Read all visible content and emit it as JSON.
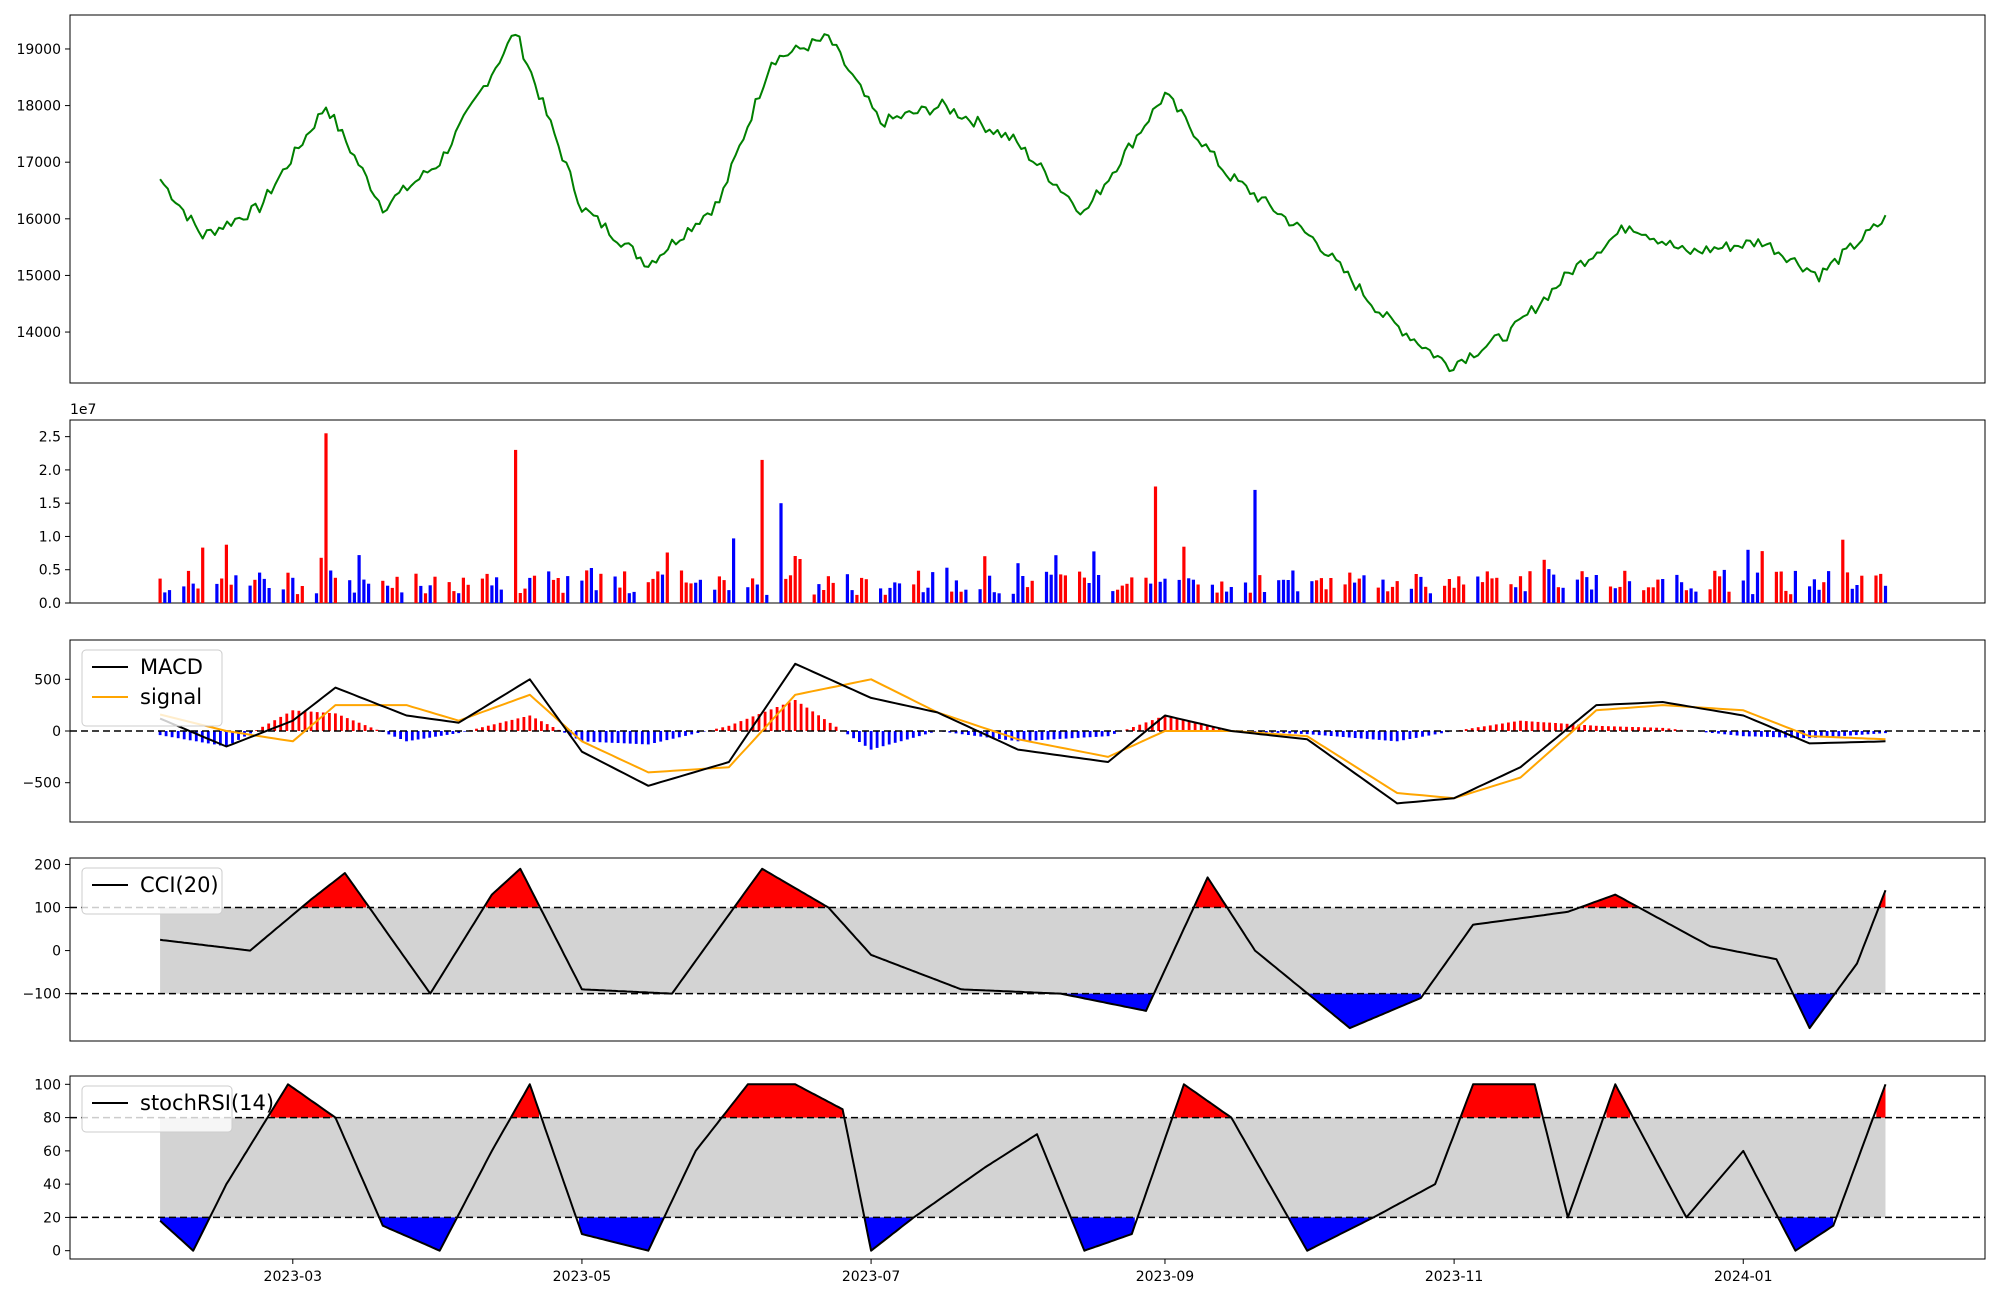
{
  "chart_data": [
    {
      "type": "line",
      "panel": "price",
      "title": "",
      "ylim": [
        13100,
        19600
      ],
      "yticks": [
        14000,
        15000,
        16000,
        17000,
        18000,
        19000
      ],
      "colors": {
        "line": "#008000"
      },
      "x": [
        "2023-02-01",
        "2023-02-10",
        "2023-02-22",
        "2023-03-08",
        "2023-03-20",
        "2023-04-01",
        "2023-04-17",
        "2023-05-01",
        "2023-05-15",
        "2023-05-30",
        "2023-06-10",
        "2023-06-22",
        "2023-07-03",
        "2023-07-16",
        "2023-07-31",
        "2023-08-15",
        "2023-09-01",
        "2023-09-14",
        "2023-10-03",
        "2023-10-17",
        "2023-10-31",
        "2023-11-13",
        "2023-11-26",
        "2023-12-08",
        "2023-12-20",
        "2024-01-05",
        "2024-01-17",
        "2024-01-31"
      ],
      "values": [
        16700,
        15700,
        16200,
        18000,
        16200,
        17000,
        19300,
        16200,
        15200,
        16300,
        18800,
        19200,
        17700,
        18000,
        17400,
        16100,
        18200,
        16800,
        15600,
        14300,
        13400,
        14000,
        15100,
        15900,
        15400,
        15600,
        15000,
        16000
      ]
    },
    {
      "type": "bar",
      "panel": "volume",
      "scale_label": "1e7",
      "ylim": [
        0,
        2.75
      ],
      "yticks": [
        "0.0",
        "0.5",
        "1.0",
        "1.5",
        "2.0",
        "2.5"
      ],
      "colors": {
        "up": "#ff0000",
        "down": "#0000ff"
      },
      "peaks": [
        {
          "x": "2023-03-08",
          "value": 2.55
        },
        {
          "x": "2023-04-17",
          "value": 2.3
        },
        {
          "x": "2023-06-08",
          "value": 2.15
        },
        {
          "x": "2023-06-12",
          "value": 1.5
        },
        {
          "x": "2023-08-30",
          "value": 1.75
        },
        {
          "x": "2023-09-20",
          "value": 1.7
        }
      ],
      "typical_range": [
        1,
        9
      ]
    },
    {
      "type": "line",
      "panel": "macd",
      "ylim": [
        -880,
        880
      ],
      "yticks": [
        -500,
        0,
        500
      ],
      "legend": [
        "MACD",
        "signal"
      ],
      "colors": {
        "macd": "#000000",
        "signal": "#ffa500",
        "hist_pos": "#ff0000",
        "hist_neg": "#0000ff"
      },
      "x": [
        "2023-02-01",
        "2023-02-15",
        "2023-03-01",
        "2023-03-10",
        "2023-03-25",
        "2023-04-05",
        "2023-04-20",
        "2023-05-01",
        "2023-05-15",
        "2023-06-01",
        "2023-06-15",
        "2023-07-01",
        "2023-07-15",
        "2023-08-01",
        "2023-08-20",
        "2023-09-01",
        "2023-09-15",
        "2023-10-01",
        "2023-10-20",
        "2023-11-01",
        "2023-11-15",
        "2023-12-01",
        "2023-12-15",
        "2024-01-01",
        "2024-01-15",
        "2024-01-31"
      ],
      "series": [
        {
          "name": "MACD",
          "values": [
            120,
            -150,
            100,
            420,
            150,
            80,
            500,
            -200,
            -530,
            -300,
            650,
            320,
            180,
            -180,
            -300,
            150,
            0,
            -80,
            -700,
            -650,
            -350,
            250,
            280,
            150,
            -120,
            -100
          ]
        },
        {
          "name": "signal",
          "values": [
            160,
            0,
            -100,
            250,
            250,
            100,
            350,
            -100,
            -400,
            -350,
            350,
            500,
            180,
            -80,
            -250,
            0,
            0,
            -50,
            -600,
            -650,
            -450,
            200,
            250,
            200,
            -50,
            -80
          ]
        }
      ]
    },
    {
      "type": "line",
      "panel": "cci",
      "ylim": [
        -210,
        215
      ],
      "yticks": [
        -100,
        0,
        100,
        200
      ],
      "band": [
        -100,
        100
      ],
      "legend": [
        "CCI(20)"
      ],
      "colors": {
        "line": "#000000",
        "over": "#ff0000",
        "under": "#0000ff",
        "band": "#d3d3d3"
      },
      "x": [
        "2023-02-01",
        "2023-02-20",
        "2023-03-05",
        "2023-03-12",
        "2023-03-30",
        "2023-04-12",
        "2023-04-18",
        "2023-05-01",
        "2023-05-20",
        "2023-06-08",
        "2023-06-22",
        "2023-07-01",
        "2023-07-20",
        "2023-08-10",
        "2023-08-28",
        "2023-09-10",
        "2023-09-20",
        "2023-10-10",
        "2023-10-25",
        "2023-11-05",
        "2023-11-25",
        "2023-12-05",
        "2023-12-25",
        "2024-01-08",
        "2024-01-15",
        "2024-01-25",
        "2024-01-31"
      ],
      "values": [
        25,
        0,
        120,
        180,
        -100,
        130,
        190,
        -90,
        -100,
        190,
        100,
        -10,
        -90,
        -100,
        -140,
        170,
        0,
        -180,
        -110,
        60,
        90,
        130,
        10,
        -20,
        -180,
        -30,
        140
      ]
    },
    {
      "type": "line",
      "panel": "stochrsi",
      "ylim": [
        -5,
        105
      ],
      "yticks": [
        0,
        20,
        40,
        60,
        80,
        100
      ],
      "band": [
        20,
        80
      ],
      "legend": [
        "stochRSI(14)"
      ],
      "colors": {
        "line": "#000000",
        "over": "#ff0000",
        "under": "#0000ff",
        "band": "#d3d3d3"
      },
      "x": [
        "2023-02-01",
        "2023-02-08",
        "2023-02-15",
        "2023-02-28",
        "2023-03-10",
        "2023-03-20",
        "2023-04-01",
        "2023-04-12",
        "2023-04-20",
        "2023-05-01",
        "2023-05-15",
        "2023-05-25",
        "2023-06-05",
        "2023-06-15",
        "2023-06-25",
        "2023-07-01",
        "2023-07-10",
        "2023-07-25",
        "2023-08-05",
        "2023-08-15",
        "2023-08-25",
        "2023-09-05",
        "2023-09-15",
        "2023-10-01",
        "2023-10-15",
        "2023-10-28",
        "2023-11-05",
        "2023-11-18",
        "2023-11-25",
        "2023-12-05",
        "2023-12-20",
        "2024-01-01",
        "2024-01-12",
        "2024-01-20",
        "2024-01-31"
      ],
      "values": [
        18,
        0,
        40,
        100,
        80,
        15,
        0,
        60,
        100,
        10,
        0,
        60,
        100,
        100,
        85,
        0,
        20,
        50,
        70,
        0,
        10,
        100,
        80,
        0,
        20,
        40,
        100,
        100,
        20,
        100,
        20,
        60,
        0,
        15,
        100
      ]
    }
  ],
  "x_axis": {
    "ticks": [
      "2023-03",
      "2023-05",
      "2023-07",
      "2023-09",
      "2023-11",
      "2024-01"
    ],
    "range": [
      "2023-01-13",
      "2024-02-21"
    ]
  }
}
